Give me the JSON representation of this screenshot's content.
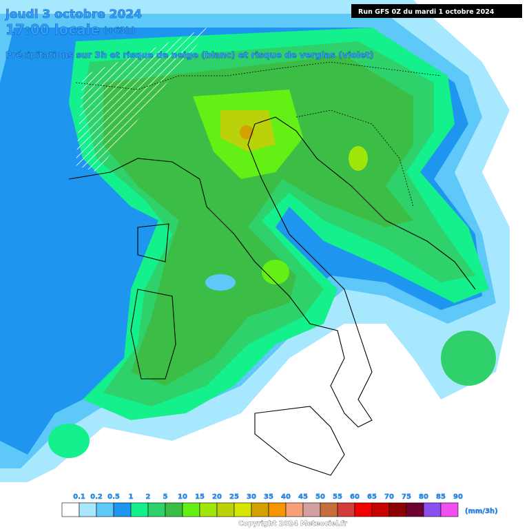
{
  "header": {
    "date": "jeudi 3 octobre 2024",
    "time": "17:00 locale",
    "lead": "(+63h)",
    "subtitle": "Précipitations sur 3h et risque de neige (blanc) et risque de verglas (violet)",
    "run": "Run GFS 0Z du mardi 1 octobre 2024"
  },
  "legend": {
    "labels": [
      "0.1",
      "0.2",
      "0.5",
      "1",
      "2",
      "5",
      "10",
      "15",
      "20",
      "25",
      "30",
      "35",
      "40",
      "45",
      "50",
      "55",
      "60",
      "65",
      "70",
      "75",
      "80",
      "85",
      "90"
    ],
    "colors": [
      "#ffffff",
      "#a8e8ff",
      "#5ec8f8",
      "#1e96f0",
      "#14f08c",
      "#2fd26a",
      "#3cbe46",
      "#64f014",
      "#a0e60a",
      "#b9d20a",
      "#d7e600",
      "#d2a000",
      "#f59600",
      "#f5a078",
      "#d2a0a0",
      "#c86e3c",
      "#d23c3c",
      "#f00000",
      "#c80000",
      "#8c0000",
      "#6e0032",
      "#8c50f0",
      "#f050f0"
    ],
    "unit": "(mm/3h)"
  },
  "footer": "Copyright 2024 Meteociel.fr"
}
